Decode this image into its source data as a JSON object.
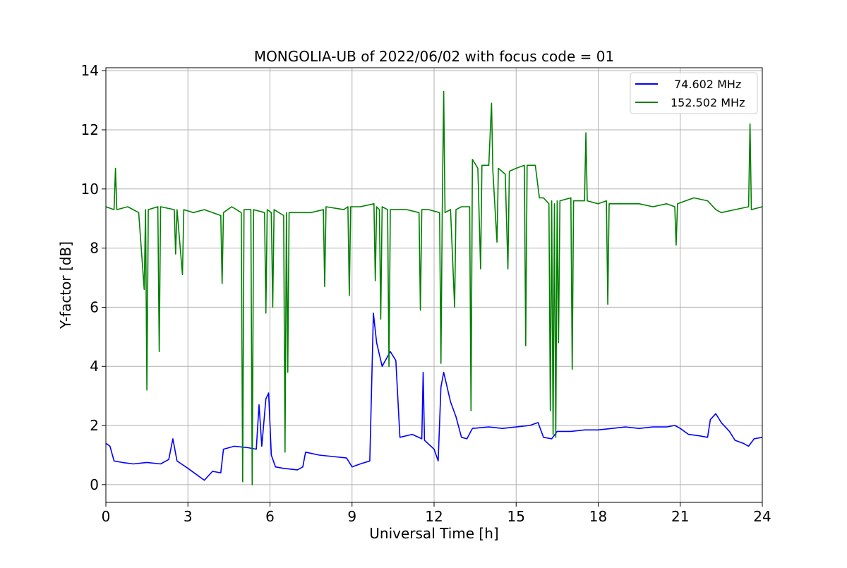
{
  "chart_data": {
    "type": "line",
    "title": "MONGOLIA-UB of 2022/06/02 with focus code = 01",
    "xlabel": "Universal Time [h]",
    "ylabel": "Y-factor [dB]",
    "xlim": [
      0,
      24
    ],
    "ylim": [
      -0.6,
      14.1
    ],
    "xticks": [
      0,
      3,
      6,
      9,
      12,
      15,
      18,
      21,
      24
    ],
    "yticks": [
      0,
      2,
      4,
      6,
      8,
      10,
      12,
      14
    ],
    "grid": true,
    "legend_position": "top-right",
    "series": [
      {
        "name": "74.602 MHz",
        "color": "#0000ff",
        "points": [
          [
            0.0,
            1.4
          ],
          [
            0.15,
            1.3
          ],
          [
            0.3,
            0.8
          ],
          [
            0.6,
            0.75
          ],
          [
            1.0,
            0.7
          ],
          [
            1.5,
            0.75
          ],
          [
            2.0,
            0.7
          ],
          [
            2.3,
            0.85
          ],
          [
            2.45,
            1.55
          ],
          [
            2.6,
            0.8
          ],
          [
            3.0,
            0.55
          ],
          [
            3.3,
            0.35
          ],
          [
            3.6,
            0.15
          ],
          [
            3.9,
            0.45
          ],
          [
            4.2,
            0.4
          ],
          [
            4.3,
            1.2
          ],
          [
            4.7,
            1.3
          ],
          [
            5.2,
            1.25
          ],
          [
            5.5,
            1.2
          ],
          [
            5.6,
            2.7
          ],
          [
            5.7,
            1.3
          ],
          [
            5.85,
            2.9
          ],
          [
            5.95,
            3.1
          ],
          [
            6.05,
            1.0
          ],
          [
            6.2,
            0.6
          ],
          [
            6.5,
            0.55
          ],
          [
            7.0,
            0.5
          ],
          [
            7.2,
            0.6
          ],
          [
            7.3,
            1.1
          ],
          [
            7.8,
            1.0
          ],
          [
            8.3,
            0.95
          ],
          [
            8.8,
            0.9
          ],
          [
            9.0,
            0.6
          ],
          [
            9.3,
            0.7
          ],
          [
            9.65,
            0.8
          ],
          [
            9.72,
            3.5
          ],
          [
            9.78,
            5.8
          ],
          [
            9.9,
            4.8
          ],
          [
            10.1,
            4.0
          ],
          [
            10.4,
            4.5
          ],
          [
            10.6,
            4.2
          ],
          [
            10.75,
            1.6
          ],
          [
            11.2,
            1.7
          ],
          [
            11.55,
            1.55
          ],
          [
            11.6,
            3.8
          ],
          [
            11.65,
            1.5
          ],
          [
            12.0,
            1.2
          ],
          [
            12.15,
            0.8
          ],
          [
            12.25,
            3.3
          ],
          [
            12.35,
            3.8
          ],
          [
            12.6,
            2.8
          ],
          [
            12.8,
            2.3
          ],
          [
            13.0,
            1.6
          ],
          [
            13.2,
            1.55
          ],
          [
            13.4,
            1.9
          ],
          [
            14.0,
            1.95
          ],
          [
            14.5,
            1.9
          ],
          [
            15.0,
            1.95
          ],
          [
            15.5,
            2.0
          ],
          [
            15.8,
            2.1
          ],
          [
            16.0,
            1.6
          ],
          [
            16.3,
            1.55
          ],
          [
            16.5,
            1.8
          ],
          [
            17.0,
            1.8
          ],
          [
            17.5,
            1.85
          ],
          [
            18.0,
            1.85
          ],
          [
            18.5,
            1.9
          ],
          [
            19.0,
            1.95
          ],
          [
            19.5,
            1.9
          ],
          [
            20.0,
            1.95
          ],
          [
            20.5,
            1.95
          ],
          [
            20.8,
            2.0
          ],
          [
            21.0,
            1.9
          ],
          [
            21.3,
            1.7
          ],
          [
            21.7,
            1.65
          ],
          [
            22.0,
            1.6
          ],
          [
            22.1,
            2.2
          ],
          [
            22.3,
            2.4
          ],
          [
            22.5,
            2.1
          ],
          [
            22.8,
            1.8
          ],
          [
            23.0,
            1.5
          ],
          [
            23.3,
            1.4
          ],
          [
            23.5,
            1.3
          ],
          [
            23.7,
            1.55
          ],
          [
            24.0,
            1.6
          ]
        ]
      },
      {
        "name": "152.502 MHz",
        "color": "#008000",
        "points": [
          [
            0.0,
            9.4
          ],
          [
            0.3,
            9.3
          ],
          [
            0.35,
            10.7
          ],
          [
            0.4,
            9.3
          ],
          [
            0.8,
            9.4
          ],
          [
            1.2,
            9.2
          ],
          [
            1.4,
            6.6
          ],
          [
            1.45,
            9.3
          ],
          [
            1.5,
            3.2
          ],
          [
            1.55,
            9.3
          ],
          [
            1.9,
            9.4
          ],
          [
            1.95,
            4.5
          ],
          [
            2.0,
            9.4
          ],
          [
            2.5,
            9.3
          ],
          [
            2.55,
            7.8
          ],
          [
            2.6,
            9.3
          ],
          [
            2.8,
            7.1
          ],
          [
            2.85,
            9.3
          ],
          [
            3.2,
            9.2
          ],
          [
            3.6,
            9.3
          ],
          [
            4.2,
            9.1
          ],
          [
            4.25,
            6.8
          ],
          [
            4.3,
            9.2
          ],
          [
            4.6,
            9.4
          ],
          [
            4.95,
            9.2
          ],
          [
            5.0,
            0.1
          ],
          [
            5.05,
            9.3
          ],
          [
            5.3,
            9.3
          ],
          [
            5.35,
            0.0
          ],
          [
            5.4,
            9.3
          ],
          [
            5.8,
            9.2
          ],
          [
            5.85,
            5.8
          ],
          [
            5.9,
            9.3
          ],
          [
            6.05,
            9.2
          ],
          [
            6.1,
            6.0
          ],
          [
            6.15,
            9.3
          ],
          [
            6.5,
            9.1
          ],
          [
            6.55,
            1.1
          ],
          [
            6.6,
            9.2
          ],
          [
            6.65,
            3.8
          ],
          [
            6.7,
            9.2
          ],
          [
            7.5,
            9.2
          ],
          [
            7.95,
            9.3
          ],
          [
            8.0,
            6.7
          ],
          [
            8.05,
            9.4
          ],
          [
            8.7,
            9.3
          ],
          [
            8.85,
            9.4
          ],
          [
            8.9,
            6.4
          ],
          [
            8.95,
            9.4
          ],
          [
            9.3,
            9.4
          ],
          [
            9.8,
            9.5
          ],
          [
            9.85,
            6.9
          ],
          [
            9.9,
            9.4
          ],
          [
            10.0,
            9.3
          ],
          [
            10.05,
            5.6
          ],
          [
            10.1,
            9.4
          ],
          [
            10.3,
            9.3
          ],
          [
            10.35,
            4.0
          ],
          [
            10.4,
            9.3
          ],
          [
            11.0,
            9.3
          ],
          [
            11.45,
            9.2
          ],
          [
            11.5,
            5.9
          ],
          [
            11.55,
            9.3
          ],
          [
            11.8,
            9.3
          ],
          [
            12.2,
            9.2
          ],
          [
            12.25,
            4.1
          ],
          [
            12.3,
            9.3
          ],
          [
            12.35,
            13.3
          ],
          [
            12.4,
            9.2
          ],
          [
            12.6,
            9.3
          ],
          [
            12.75,
            6.0
          ],
          [
            12.8,
            9.3
          ],
          [
            13.0,
            9.4
          ],
          [
            13.3,
            9.4
          ],
          [
            13.35,
            2.5
          ],
          [
            13.4,
            11.0
          ],
          [
            13.6,
            10.7
          ],
          [
            13.7,
            7.3
          ],
          [
            13.75,
            10.8
          ],
          [
            14.0,
            10.8
          ],
          [
            14.1,
            12.9
          ],
          [
            14.15,
            10.6
          ],
          [
            14.3,
            8.2
          ],
          [
            14.35,
            10.7
          ],
          [
            14.6,
            10.5
          ],
          [
            14.7,
            7.3
          ],
          [
            14.75,
            10.6
          ],
          [
            15.0,
            10.7
          ],
          [
            15.3,
            10.8
          ],
          [
            15.35,
            4.7
          ],
          [
            15.4,
            10.8
          ],
          [
            15.7,
            10.8
          ],
          [
            15.85,
            9.7
          ],
          [
            16.0,
            9.7
          ],
          [
            16.2,
            9.5
          ],
          [
            16.25,
            2.5
          ],
          [
            16.3,
            9.6
          ],
          [
            16.35,
            1.7
          ],
          [
            16.4,
            9.5
          ],
          [
            16.45,
            1.6
          ],
          [
            16.5,
            9.6
          ],
          [
            16.55,
            4.8
          ],
          [
            16.6,
            9.6
          ],
          [
            17.0,
            9.7
          ],
          [
            17.05,
            3.9
          ],
          [
            17.1,
            9.6
          ],
          [
            17.5,
            9.6
          ],
          [
            17.55,
            11.9
          ],
          [
            17.6,
            9.6
          ],
          [
            18.0,
            9.5
          ],
          [
            18.3,
            9.6
          ],
          [
            18.35,
            6.1
          ],
          [
            18.4,
            9.5
          ],
          [
            19.0,
            9.5
          ],
          [
            19.5,
            9.5
          ],
          [
            20.0,
            9.4
          ],
          [
            20.5,
            9.5
          ],
          [
            20.8,
            9.4
          ],
          [
            20.85,
            8.1
          ],
          [
            20.9,
            9.5
          ],
          [
            21.5,
            9.7
          ],
          [
            22.0,
            9.6
          ],
          [
            22.3,
            9.3
          ],
          [
            22.5,
            9.2
          ],
          [
            23.0,
            9.3
          ],
          [
            23.5,
            9.4
          ],
          [
            23.55,
            12.2
          ],
          [
            23.6,
            9.3
          ],
          [
            24.0,
            9.4
          ]
        ]
      }
    ]
  }
}
